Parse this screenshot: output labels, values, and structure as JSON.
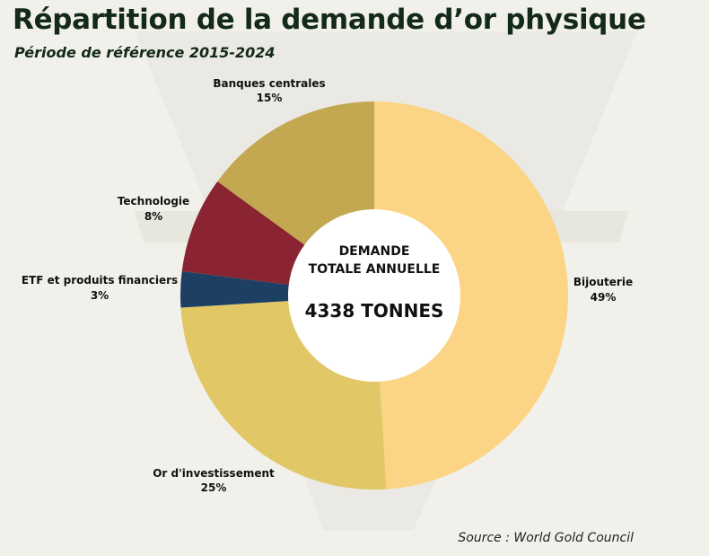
{
  "header": {
    "title": "Répartition de la demande d’or physique",
    "subtitle": "Période de référence 2015-2024"
  },
  "center": {
    "line1": "DEMANDE",
    "line2": "TOTALE ANNUELLE",
    "total": "4338 TONNES"
  },
  "footer": {
    "source": "Source : World Gold Council"
  },
  "chart_data": {
    "type": "pie",
    "donut": true,
    "unit": "%",
    "categories": [
      "Bijouterie",
      "Or d'investissement",
      "ETF et produits financiers",
      "Technologie",
      "Banques centrales"
    ],
    "values": [
      49,
      25,
      3,
      8,
      15
    ],
    "labels": [
      "49%",
      "25%",
      "3%",
      "8%",
      "15%"
    ],
    "colors": [
      "#fcd485",
      "#e2c766",
      "#1d3f63",
      "#8b2432",
      "#c3a751"
    ],
    "total_annual_demand_tonnes": 4338
  }
}
